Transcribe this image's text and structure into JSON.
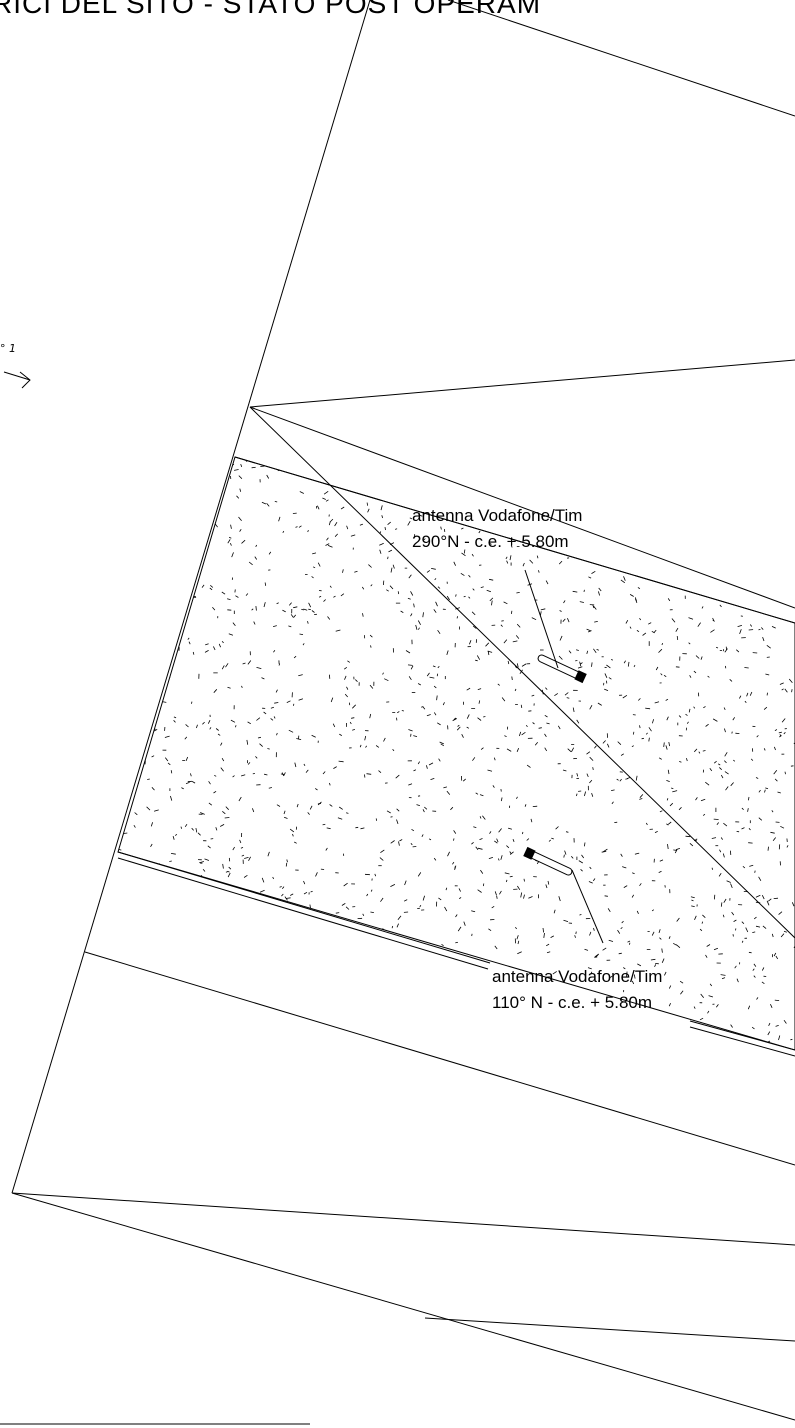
{
  "drawing": {
    "title": "RICI DEL SITO - STATO POST OPERAM",
    "north_marker_text": "° 1"
  },
  "annotations": [
    {
      "line1": "antenna Vodafone/Tim",
      "line2": "290°N - c.e. + 5.80m"
    },
    {
      "line1": "antenna Vodafone/Tim",
      "line2": "110° N - c.e. + 5.80m"
    }
  ],
  "colors": {
    "ink": "#000000",
    "background": "#ffffff"
  }
}
